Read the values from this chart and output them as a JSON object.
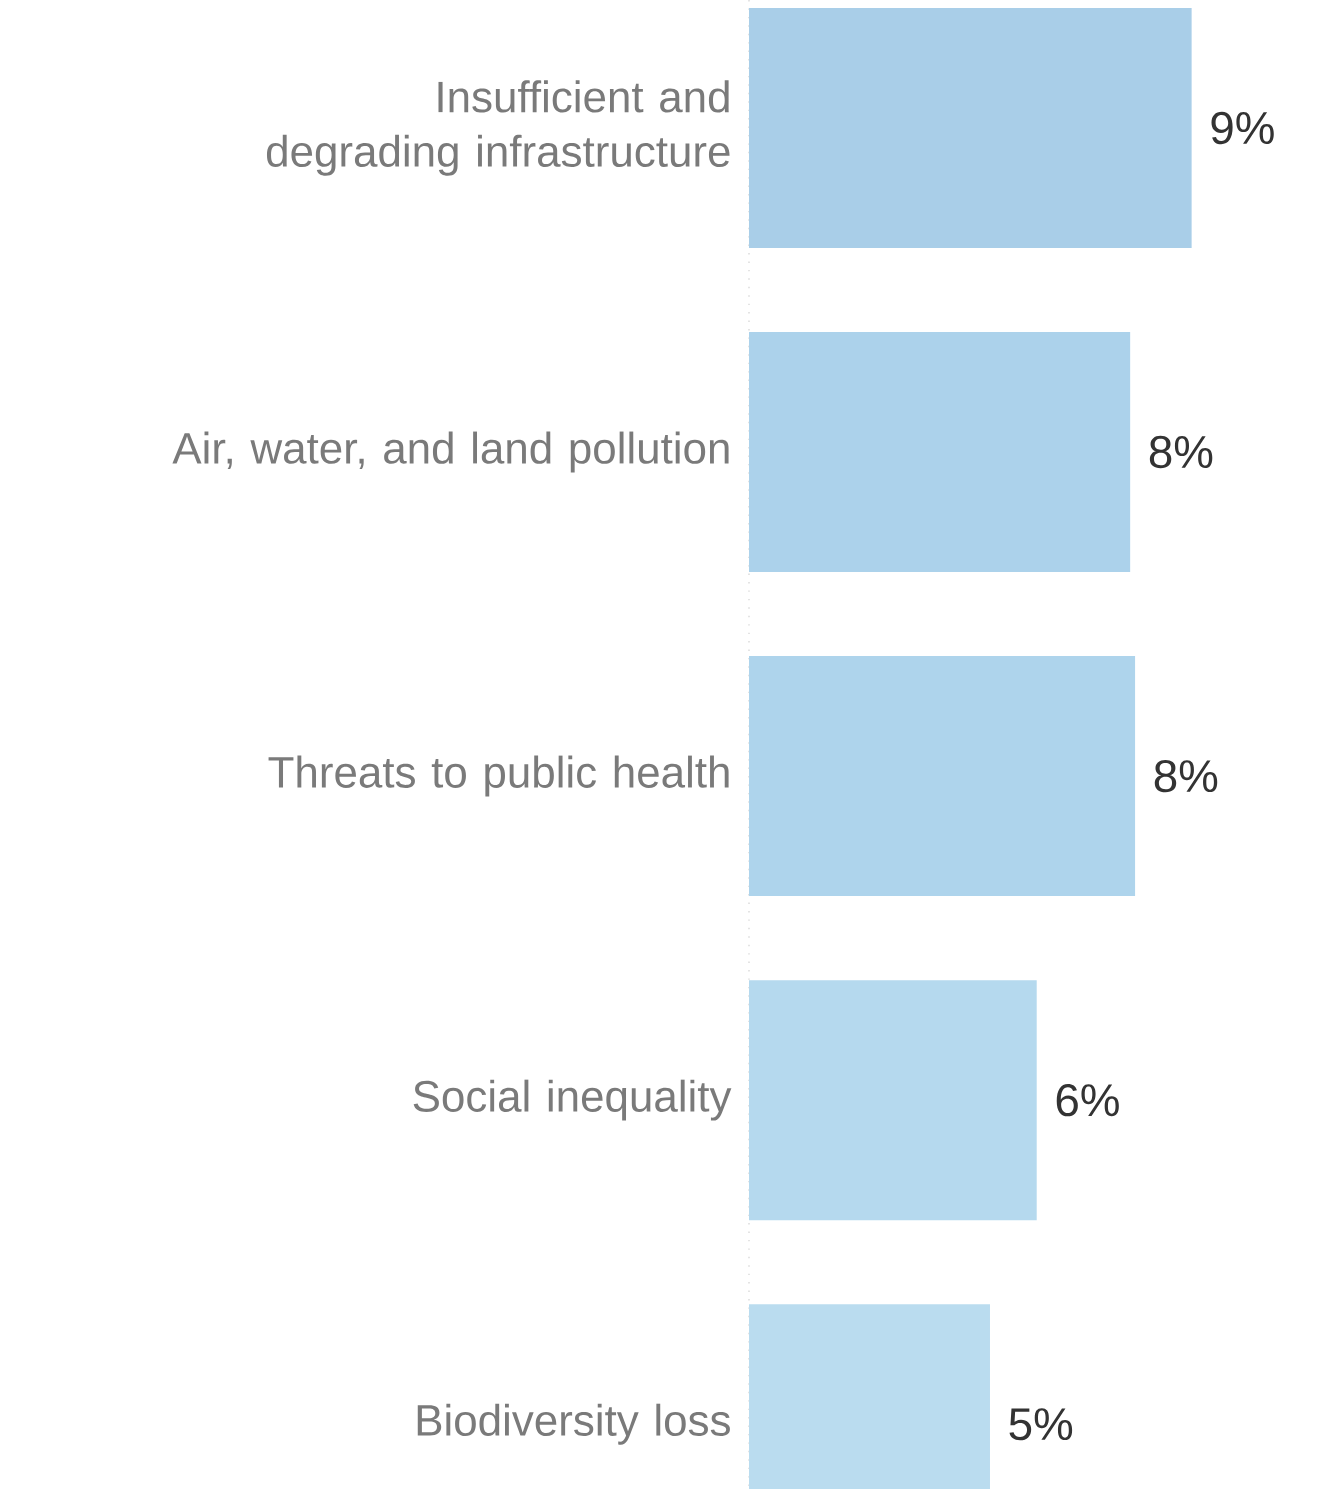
{
  "chart_data": {
    "type": "bar",
    "orientation": "horizontal",
    "categories": [
      "Insufficient and degrading infrastructure",
      "Air, water, and land pollution",
      "Threats to public health",
      "Social inequality",
      "Biodiversity loss"
    ],
    "values": [
      9.0,
      7.75,
      7.85,
      5.85,
      4.9
    ],
    "value_labels": [
      "9%",
      "8%",
      "8%",
      "6%",
      "5%"
    ],
    "colors": [
      "#a9cee8",
      "#acd2eb",
      "#aed4ec",
      "#b5d9ee",
      "#badcef"
    ],
    "tick_labels": "y"
  }
}
